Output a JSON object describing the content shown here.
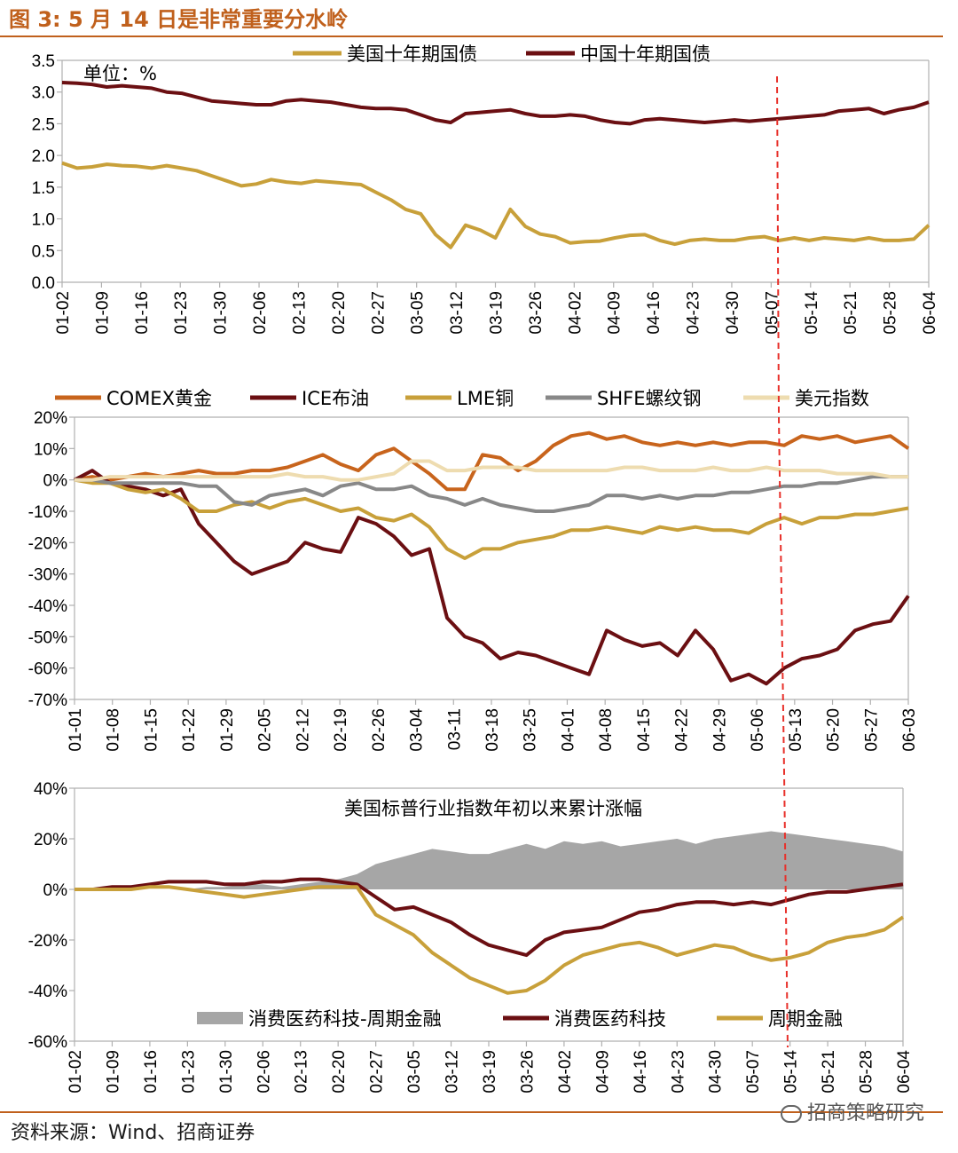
{
  "figure_title": "图 3:  5 月 14 日是非常重要分水岭",
  "source": "资料来源：Wind、招商证券",
  "watermark": "招商策略研究",
  "colors": {
    "accent": "#c0601c",
    "us_bond": "#c8a03a",
    "cn_bond": "#6b0f12",
    "gold": "#c8641c",
    "brent": "#6b0f12",
    "copper": "#c8a03a",
    "rebar": "#888888",
    "usd": "#eedcb0",
    "spread_fill": "#a6a6a6",
    "consumer": "#6b0f12",
    "cyclical": "#c8a03a",
    "marker": "#e8302a"
  },
  "chart_data": [
    {
      "type": "line",
      "unit_note": "单位：%",
      "ylim": [
        0,
        3.5
      ],
      "yticks": [
        "3.5",
        "3.0",
        "2.5",
        "2.0",
        "1.5",
        "1.0",
        "0.5",
        "0.0"
      ],
      "xticks": [
        "01-02",
        "01-09",
        "01-16",
        "01-23",
        "01-30",
        "02-06",
        "02-13",
        "02-20",
        "02-27",
        "03-05",
        "03-12",
        "03-19",
        "03-26",
        "04-02",
        "04-09",
        "04-16",
        "04-23",
        "04-30",
        "05-07",
        "05-14",
        "05-21",
        "05-28",
        "06-04"
      ],
      "marker_date": "05-12",
      "series": [
        {
          "name": "美国十年期国债",
          "values": [
            1.88,
            1.8,
            1.82,
            1.86,
            1.84,
            1.83,
            1.8,
            1.84,
            1.8,
            1.76,
            1.68,
            1.6,
            1.52,
            1.55,
            1.62,
            1.58,
            1.56,
            1.6,
            1.58,
            1.56,
            1.54,
            1.42,
            1.3,
            1.15,
            1.08,
            0.75,
            0.55,
            0.9,
            0.82,
            0.7,
            1.15,
            0.88,
            0.76,
            0.72,
            0.62,
            0.64,
            0.65,
            0.7,
            0.74,
            0.75,
            0.66,
            0.6,
            0.66,
            0.68,
            0.66,
            0.66,
            0.7,
            0.72,
            0.66,
            0.7,
            0.66,
            0.7,
            0.68,
            0.66,
            0.7,
            0.66,
            0.66,
            0.68,
            0.9
          ]
        },
        {
          "name": "中国十年期国债",
          "values": [
            3.15,
            3.14,
            3.12,
            3.08,
            3.1,
            3.08,
            3.06,
            3.0,
            2.98,
            2.92,
            2.86,
            2.84,
            2.82,
            2.8,
            2.8,
            2.86,
            2.88,
            2.86,
            2.84,
            2.8,
            2.76,
            2.74,
            2.74,
            2.72,
            2.64,
            2.56,
            2.52,
            2.66,
            2.68,
            2.7,
            2.72,
            2.66,
            2.62,
            2.62,
            2.64,
            2.62,
            2.56,
            2.52,
            2.5,
            2.56,
            2.58,
            2.56,
            2.54,
            2.52,
            2.54,
            2.56,
            2.54,
            2.56,
            2.58,
            2.6,
            2.62,
            2.64,
            2.7,
            2.72,
            2.74,
            2.66,
            2.72,
            2.76,
            2.84
          ]
        }
      ]
    },
    {
      "type": "line",
      "ylim": [
        -70,
        20
      ],
      "yticks": [
        "20%",
        "10%",
        "0%",
        "-10%",
        "-20%",
        "-30%",
        "-40%",
        "-50%",
        "-60%",
        "-70%"
      ],
      "xticks": [
        "01-01",
        "01-08",
        "01-15",
        "01-22",
        "01-29",
        "02-05",
        "02-12",
        "02-19",
        "02-26",
        "03-04",
        "03-11",
        "03-18",
        "03-25",
        "04-01",
        "04-08",
        "04-15",
        "04-22",
        "04-29",
        "05-06",
        "05-13",
        "05-20",
        "05-27",
        "06-03"
      ],
      "series": [
        {
          "name": "COMEX黄金",
          "values": [
            0,
            1,
            0,
            1,
            2,
            1,
            2,
            3,
            2,
            2,
            3,
            3,
            4,
            6,
            8,
            5,
            3,
            8,
            10,
            6,
            2,
            -3,
            -3,
            8,
            7,
            3,
            6,
            11,
            14,
            15,
            13,
            14,
            12,
            11,
            12,
            11,
            12,
            11,
            12,
            12,
            11,
            14,
            13,
            14,
            12,
            13,
            14,
            10
          ]
        },
        {
          "name": "ICE布油",
          "values": [
            0,
            3,
            -1,
            -2,
            -3,
            -5,
            -3,
            -14,
            -20,
            -26,
            -30,
            -28,
            -26,
            -20,
            -22,
            -23,
            -12,
            -14,
            -18,
            -24,
            -22,
            -44,
            -50,
            -52,
            -57,
            -55,
            -56,
            -58,
            -60,
            -62,
            -48,
            -51,
            -53,
            -52,
            -56,
            -48,
            -54,
            -64,
            -62,
            -65,
            -60,
            -57,
            -56,
            -54,
            -48,
            -46,
            -45,
            -37
          ]
        },
        {
          "name": "LME铜",
          "values": [
            0,
            -1,
            -1,
            -3,
            -4,
            -3,
            -6,
            -10,
            -10,
            -8,
            -7,
            -9,
            -7,
            -6,
            -8,
            -10,
            -9,
            -12,
            -13,
            -11,
            -15,
            -22,
            -25,
            -22,
            -22,
            -20,
            -19,
            -18,
            -16,
            -16,
            -15,
            -16,
            -17,
            -15,
            -16,
            -15,
            -16,
            -16,
            -17,
            -14,
            -12,
            -14,
            -12,
            -12,
            -11,
            -11,
            -10,
            -9
          ]
        },
        {
          "name": "SHFE螺纹钢",
          "values": [
            0,
            0,
            -1,
            -1,
            -1,
            -1,
            -1,
            -2,
            -2,
            -7,
            -8,
            -5,
            -4,
            -3,
            -5,
            -2,
            -1,
            -3,
            -3,
            -2,
            -5,
            -6,
            -8,
            -6,
            -8,
            -9,
            -10,
            -10,
            -9,
            -8,
            -5,
            -5,
            -6,
            -5,
            -6,
            -5,
            -5,
            -4,
            -4,
            -3,
            -2,
            -2,
            -1,
            -1,
            0,
            1,
            1,
            1
          ]
        },
        {
          "name": "美元指数",
          "values": [
            0,
            0,
            1,
            1,
            1,
            1,
            1,
            1,
            1,
            1,
            1,
            1,
            2,
            1,
            1,
            0,
            0,
            1,
            2,
            6,
            6,
            3,
            3,
            4,
            4,
            4,
            3,
            3,
            3,
            3,
            3,
            4,
            4,
            3,
            3,
            3,
            4,
            3,
            3,
            4,
            3,
            3,
            3,
            2,
            2,
            2,
            1,
            1
          ]
        }
      ]
    },
    {
      "type": "area",
      "inner_title": "美国标普行业指数年初以来累计涨幅",
      "ylim": [
        -60,
        40
      ],
      "yticks": [
        "40%",
        "20%",
        "0%",
        "-20%",
        "-40%",
        "-60%"
      ],
      "xticks": [
        "01-02",
        "01-09",
        "01-16",
        "01-23",
        "01-30",
        "02-06",
        "02-13",
        "02-20",
        "02-27",
        "03-05",
        "03-12",
        "03-19",
        "03-26",
        "04-02",
        "04-09",
        "04-16",
        "04-23",
        "04-30",
        "05-07",
        "05-14",
        "05-21",
        "05-28",
        "06-04"
      ],
      "series": [
        {
          "name": "消费医药科技-周期金融",
          "values": [
            0,
            0,
            0,
            0,
            0,
            0,
            0,
            1,
            1,
            2,
            2,
            1,
            2,
            3,
            4,
            6,
            10,
            12,
            14,
            16,
            15,
            14,
            14,
            16,
            18,
            16,
            19,
            18,
            19,
            17,
            18,
            19,
            20,
            18,
            20,
            21,
            22,
            23,
            22,
            21,
            20,
            19,
            18,
            17,
            15
          ]
        },
        {
          "name": "消费医药科技",
          "values": [
            0,
            0,
            1,
            1,
            2,
            3,
            3,
            3,
            2,
            2,
            3,
            3,
            4,
            4,
            3,
            2,
            -3,
            -8,
            -7,
            -10,
            -13,
            -18,
            -22,
            -24,
            -26,
            -20,
            -17,
            -16,
            -15,
            -12,
            -9,
            -8,
            -6,
            -5,
            -5,
            -6,
            -5,
            -6,
            -4,
            -2,
            -1,
            -1,
            0,
            1,
            2
          ]
        },
        {
          "name": "周期金融",
          "values": [
            0,
            0,
            0,
            0,
            1,
            1,
            0,
            -1,
            -2,
            -3,
            -2,
            -1,
            0,
            1,
            1,
            1,
            -10,
            -14,
            -18,
            -25,
            -30,
            -35,
            -38,
            -41,
            -40,
            -36,
            -30,
            -26,
            -24,
            -22,
            -21,
            -23,
            -26,
            -24,
            -22,
            -23,
            -26,
            -28,
            -27,
            -25,
            -21,
            -19,
            -18,
            -16,
            -11
          ]
        }
      ]
    }
  ]
}
